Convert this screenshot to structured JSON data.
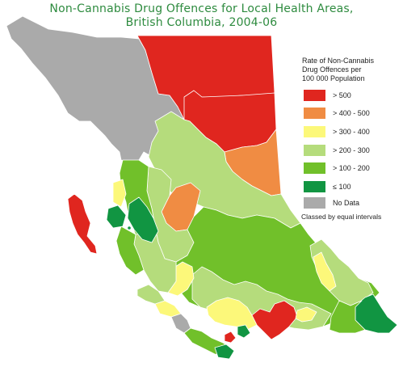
{
  "title_line1": "Non-Cannabis Drug Offences for Local Health Areas,",
  "title_line2": "British Columbia, 2004-06",
  "legend": {
    "title_line1": "Rate of Non-Cannabis",
    "title_line2": "Drug  Offences per",
    "title_line3": "100 000 Population",
    "items": [
      {
        "label": "> 500",
        "color": "#e0261f"
      },
      {
        "label": "> 400 - 500",
        "color": "#f08c43"
      },
      {
        "label": "> 300 - 400",
        "color": "#fcf87a"
      },
      {
        "label": "> 200 - 300",
        "color": "#b5dc7c"
      },
      {
        "label": "> 100 - 200",
        "color": "#71c02a"
      },
      {
        "label": "≤ 100",
        "color": "#119542"
      },
      {
        "label": "No Data",
        "color": "#aaaaaa"
      }
    ],
    "note": "Classed by equal intervals"
  }
}
